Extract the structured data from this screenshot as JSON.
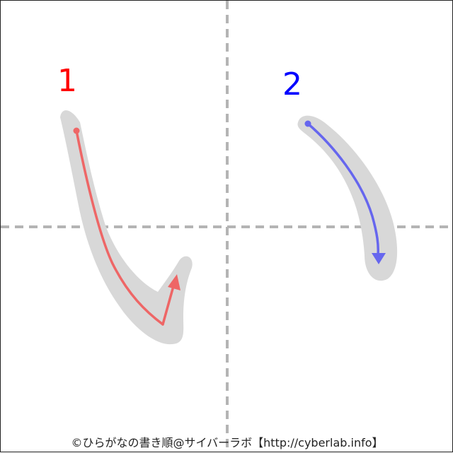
{
  "character": "い",
  "strokes": [
    {
      "number": "1",
      "color": "#ee6666",
      "number_color": "#ff0000"
    },
    {
      "number": "2",
      "color": "#6666ee",
      "number_color": "#0000ff"
    }
  ],
  "guide_color": "#b4b4b4",
  "shadow_color": "#d8d8d8",
  "credit": "©ひらがなの書き順@サイバーラボ【http://cyberlab.info】"
}
